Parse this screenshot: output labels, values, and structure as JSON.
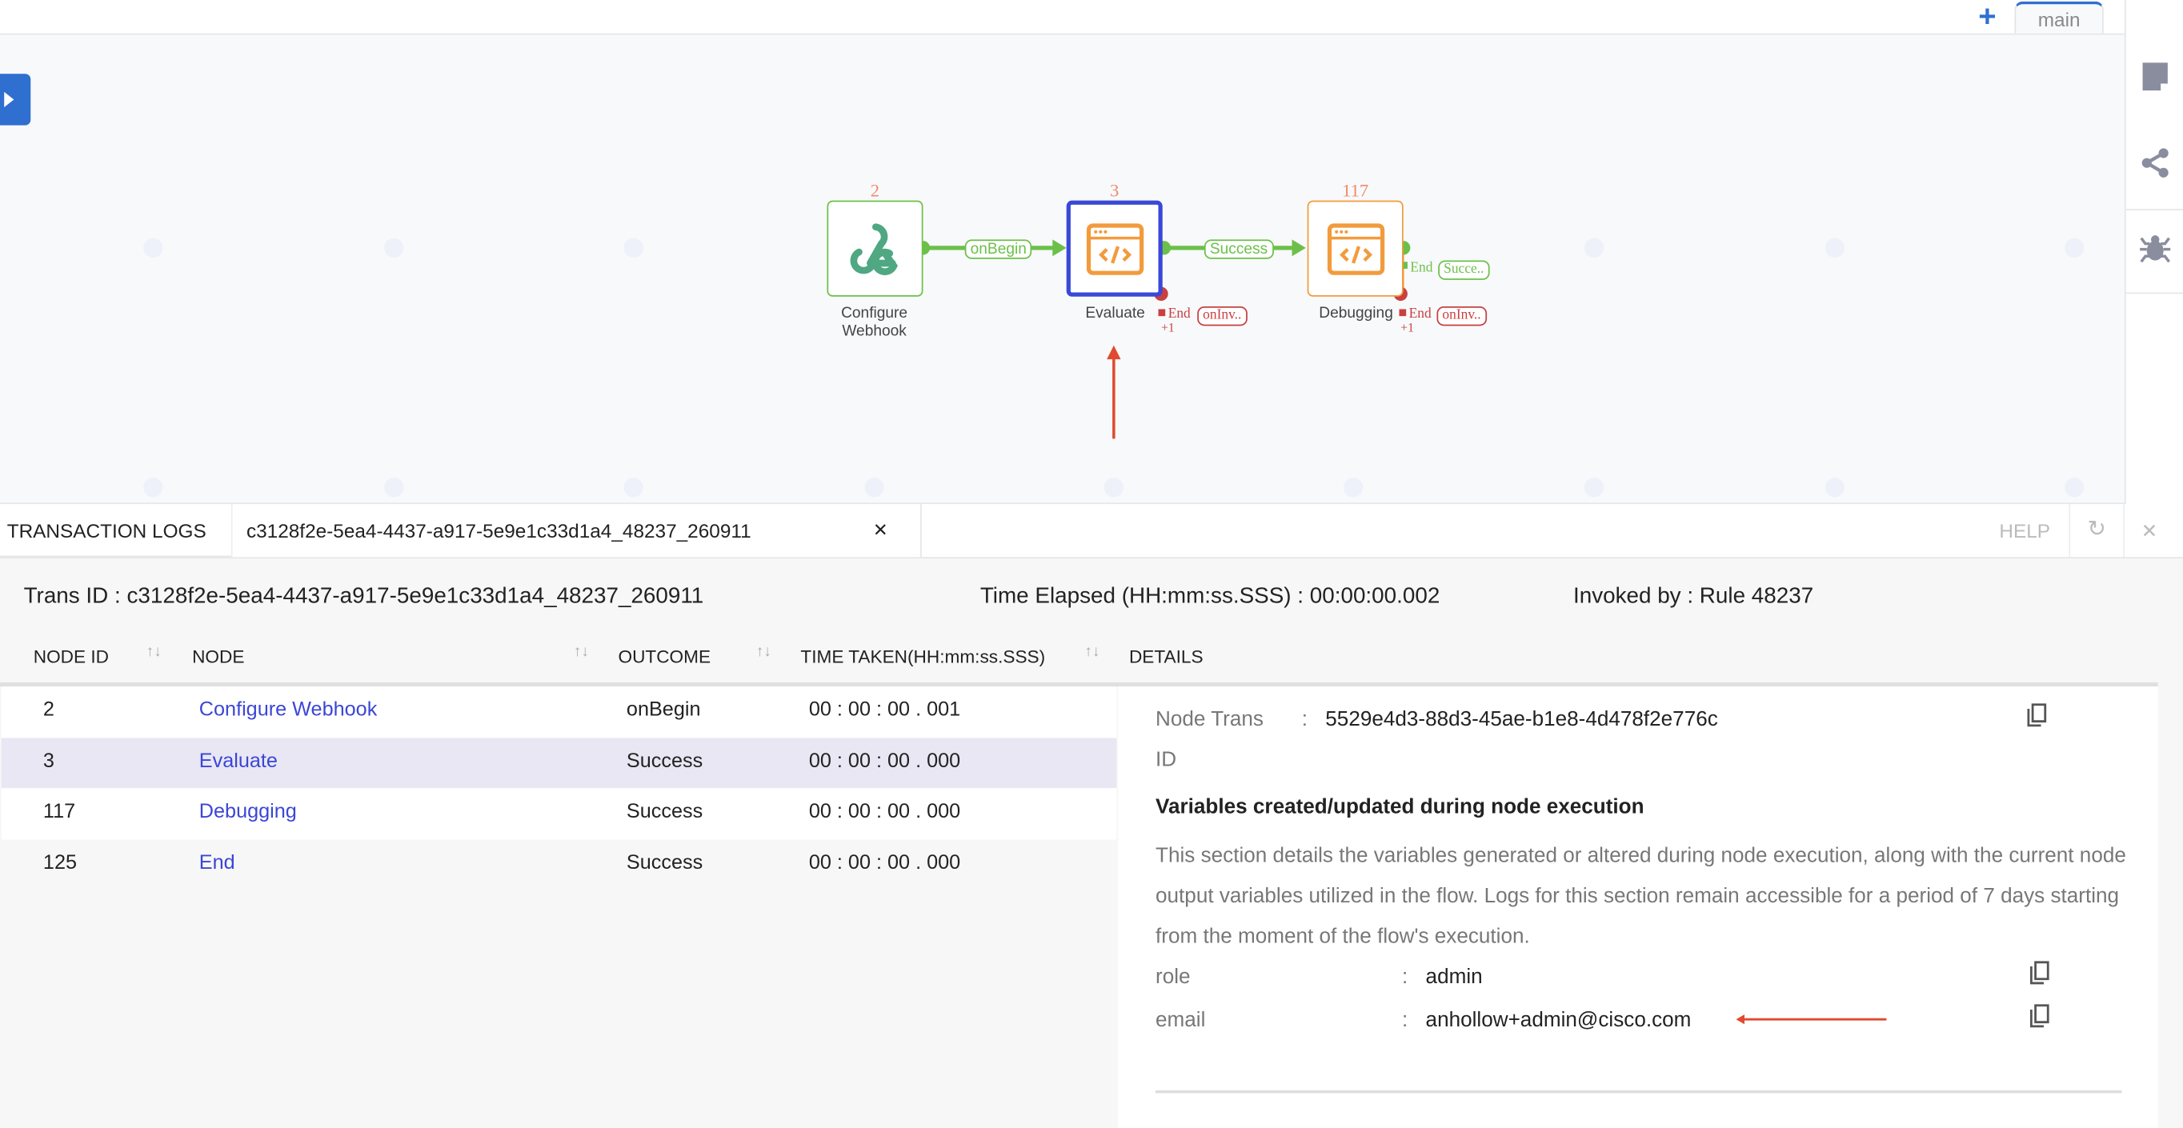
{
  "header": {
    "add_tab_icon": "plus-icon",
    "tabs": [
      {
        "label": "main",
        "active": true
      }
    ]
  },
  "sidebar": {
    "icons": [
      "note-icon",
      "share-icon",
      "bug-icon"
    ]
  },
  "flow": {
    "nodes": [
      {
        "id": "2",
        "label_line1": "Configure",
        "label_line2": "Webhook",
        "icon": "webhook-icon",
        "border": "#6cc04a"
      },
      {
        "id": "3",
        "label": "Evaluate",
        "icon": "code-window-icon",
        "border": "#3a48d8",
        "selected": true
      },
      {
        "id": "117",
        "label": "Debugging",
        "icon": "code-window-icon",
        "border": "#f29b3c"
      }
    ],
    "edges": [
      {
        "from": "2",
        "to": "3",
        "label": "onBegin"
      },
      {
        "from": "3",
        "to": "117",
        "label": "Success"
      }
    ],
    "evaluate_end": {
      "end": "End",
      "badge": "onInv..",
      "extra": "+1"
    },
    "debugging_end_success": {
      "end": "End",
      "badge": "Succe.."
    },
    "debugging_end_fail": {
      "end": "End",
      "badge": "onInv..",
      "extra": "+1"
    },
    "colors": {
      "success": "#6cc04a",
      "failure": "#c94040",
      "annotation": "#e04a2f"
    }
  },
  "panel": {
    "tabs": [
      {
        "label": "TRANSACTION LOGS"
      },
      {
        "label": "c3128f2e-5ea4-4437-a917-5e9e1c33d1a4_48237_260911",
        "closable": true
      }
    ],
    "close_x": "✕",
    "help": "HELP",
    "info": {
      "trans_id": "Trans ID : c3128f2e-5ea4-4437-a917-5e9e1c33d1a4_48237_260911",
      "time_elapsed": "Time Elapsed (HH:mm:ss.SSS) :  00:00:00.002",
      "invoked_by": "Invoked by : Rule 48237"
    },
    "columns": [
      "NODE ID",
      "NODE",
      "OUTCOME",
      "TIME TAKEN(HH:mm:ss.SSS)",
      "DETAILS"
    ],
    "rows": [
      {
        "id": "2",
        "node": "Configure Webhook",
        "outcome": "onBegin",
        "time": "00 : 00 : 00 . 001"
      },
      {
        "id": "3",
        "node": "Evaluate",
        "outcome": "Success",
        "time": "00 : 00 : 00 . 000",
        "selected": true
      },
      {
        "id": "117",
        "node": "Debugging",
        "outcome": "Success",
        "time": "00 : 00 : 00 . 000"
      },
      {
        "id": "125",
        "node": "End",
        "outcome": "Success",
        "time": "00 : 00 : 00 . 000"
      }
    ],
    "details": {
      "node_trans_label1": "Node Trans",
      "node_trans_label2": "ID",
      "node_trans_value": "5529e4d3-88d3-45ae-b1e8-4d478f2e776c",
      "section_title": "Variables created/updated during node execution",
      "section_desc": "This section details the variables generated or altered during node execution, along with the current node output variables utilized in the flow. Logs for this section remain accessible for a period of 7 days starting from the moment of the flow's execution.",
      "vars": [
        {
          "name": "role",
          "value": "admin"
        },
        {
          "name": "email",
          "value": "anhollow+admin@cisco.com"
        }
      ]
    }
  }
}
